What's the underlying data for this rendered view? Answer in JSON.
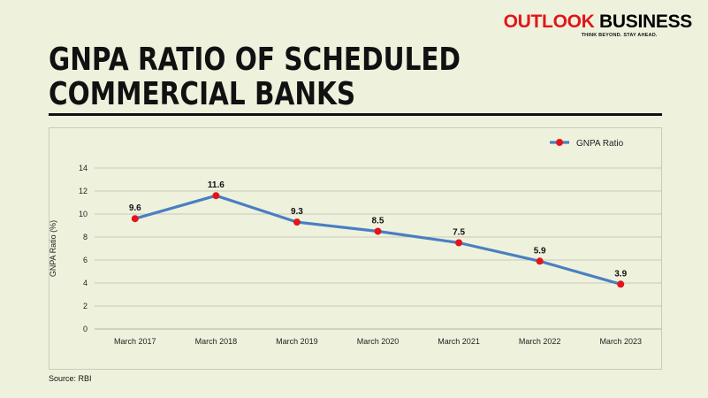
{
  "brand": {
    "name_part1": "OUTLOOK",
    "name_part2": " BUSINESS",
    "tagline": "THINK BEYOND. STAY AHEAD."
  },
  "title_line1": "GNPA RATIO OF SCHEDULED",
  "title_line2": "COMMERCIAL BANKS",
  "source": "Source: RBI",
  "colors": {
    "line": "#4a7fc1",
    "marker": "#e3151a",
    "background": "#eef2dd",
    "brand_red": "#e3151a"
  },
  "chart_data": {
    "type": "line",
    "title": "GNPA RATIO OF SCHEDULED COMMERCIAL BANKS",
    "categories": [
      "March 2017",
      "March 2018",
      "March 2019",
      "March 2020",
      "March 2021",
      "March 2022",
      "March 2023"
    ],
    "series": [
      {
        "name": "GNPA Ratio",
        "values": [
          9.6,
          11.6,
          9.3,
          8.5,
          7.5,
          5.9,
          3.9
        ]
      }
    ],
    "xlabel": "",
    "ylabel": "GNPA Ratio (%)",
    "ylim": [
      0,
      14
    ],
    "yticks": [
      0,
      2,
      4,
      6,
      8,
      10,
      12,
      14
    ],
    "grid": true,
    "legend": "top-right",
    "data_labels": true
  }
}
